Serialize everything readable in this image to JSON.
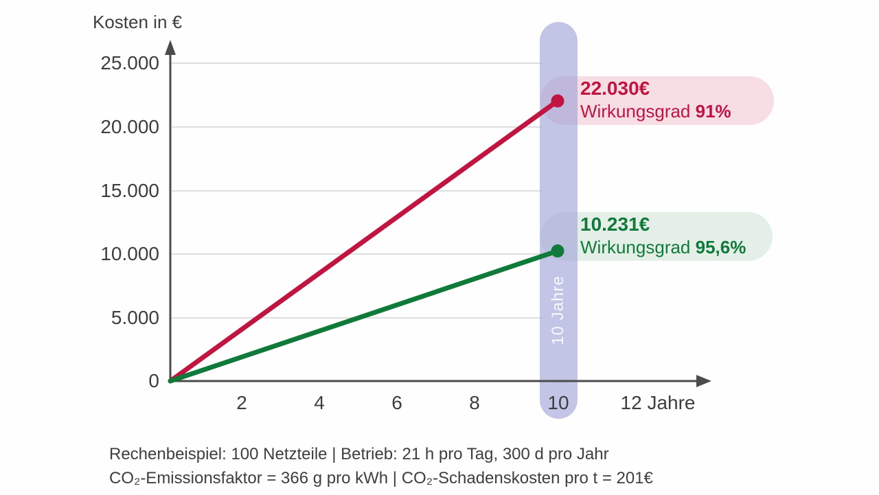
{
  "colors": {
    "red": "#c01441",
    "red-pill": "#f7dee5",
    "green": "#107a3a",
    "green-pill": "#e4efe7",
    "axis": "#4b4b4a",
    "grid": "#dedede",
    "text": "#3e3e3d",
    "bg": "#fefefe"
  },
  "chart_data": {
    "type": "line",
    "title": "Kosten in €",
    "xlabel": "Jahre",
    "ylabel": "Kosten in €",
    "xlim": [
      0,
      12
    ],
    "ylim": [
      0,
      25000
    ],
    "grid": true,
    "legend_position": "none",
    "x_tick_labels": [
      "2",
      "4",
      "6",
      "8",
      "10",
      "12 Jahre"
    ],
    "y_tick_labels": [
      "25.000",
      "20.000",
      "15.000",
      "10.000",
      "5.000",
      "0"
    ],
    "series": [
      {
        "name": "Wirkungsgrad 91%",
        "color": "#c01441",
        "x": [
          0,
          10
        ],
        "values": [
          0,
          22030
        ],
        "annotation": {
          "value": "22.030€",
          "label": "Wirkungsgrad",
          "label_bold": "91%"
        }
      },
      {
        "name": "Wirkungsgrad 95,6%",
        "color": "#107a3a",
        "x": [
          0,
          10
        ],
        "values": [
          0,
          10231
        ],
        "annotation": {
          "value": "10.231€",
          "label": "Wirkungsgrad",
          "label_bold": "95,6%"
        }
      }
    ],
    "highlight_band": {
      "x_value": 10,
      "label": "10 Jahre"
    }
  },
  "footnote": {
    "line1": "Rechenbeispiel: 100 Netzteile | Betrieb: 21 h pro Tag, 300 d pro Jahr",
    "line2": "CO₂-Emissionsfaktor = 366 g pro kWh | CO₂-Schadenskosten pro t = 201€"
  }
}
